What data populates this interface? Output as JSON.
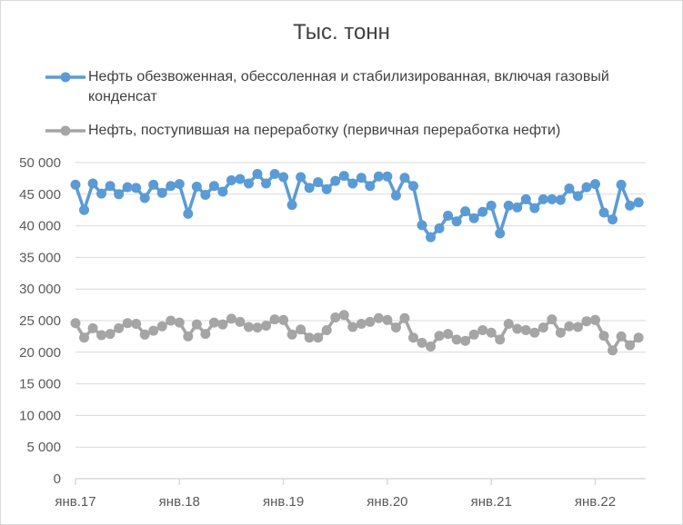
{
  "chart_data": {
    "type": "line",
    "title": "Тыс. тонн",
    "xlabel": "",
    "ylabel": "",
    "ylim": [
      0,
      50000
    ],
    "yticks": [
      0,
      5000,
      10000,
      15000,
      20000,
      25000,
      30000,
      35000,
      40000,
      45000,
      50000
    ],
    "ytick_labels": [
      "0",
      "5 000",
      "10 000",
      "15 000",
      "20 000",
      "25 000",
      "30 000",
      "35 000",
      "40 000",
      "45 000",
      "50 000"
    ],
    "x_start": "2017-01",
    "xtick_labels": [
      "янв.17",
      "янв.18",
      "янв.19",
      "янв.20",
      "янв.21",
      "янв.22"
    ],
    "grid": true,
    "legend_position": "top",
    "series": [
      {
        "name": "Нефть обезвоженная, обессоленная и стабилизированная, включая газовый конденсат",
        "color": "#5b9bd5",
        "values": [
          46500,
          42500,
          46700,
          45100,
          46300,
          45000,
          46100,
          46000,
          44400,
          46500,
          45200,
          46300,
          46600,
          41900,
          46200,
          44900,
          46300,
          45400,
          47200,
          47400,
          46700,
          48200,
          46700,
          48200,
          47700,
          43300,
          47700,
          46000,
          46900,
          45800,
          47100,
          47900,
          46700,
          47600,
          46300,
          47800,
          47800,
          44800,
          47600,
          46300,
          40100,
          38200,
          39600,
          41600,
          40700,
          42300,
          41200,
          42200,
          43200,
          38800,
          43200,
          42900,
          44200,
          42800,
          44200,
          44200,
          44100,
          45900,
          44700,
          46100,
          46600,
          42100,
          41000,
          46500,
          43200,
          43700
        ]
      },
      {
        "name": "Нефть, поступившая на переработку (первичная переработка нефти)",
        "color": "#a5a5a5",
        "values": [
          24600,
          22300,
          23800,
          22700,
          22900,
          23800,
          24600,
          24500,
          22800,
          23400,
          24100,
          25000,
          24700,
          22500,
          24400,
          22900,
          24700,
          24400,
          25300,
          24800,
          24000,
          23900,
          24200,
          25200,
          25100,
          22800,
          23600,
          22300,
          22300,
          23500,
          25500,
          25900,
          24000,
          24500,
          24800,
          25400,
          25100,
          23900,
          25400,
          22300,
          21500,
          20900,
          22600,
          22900,
          22000,
          21800,
          22800,
          23500,
          23100,
          22000,
          24500,
          23700,
          23500,
          23100,
          23900,
          25200,
          23100,
          24100,
          24000,
          24900,
          25100,
          22600,
          20300,
          22500,
          21100,
          22300
        ]
      }
    ]
  }
}
